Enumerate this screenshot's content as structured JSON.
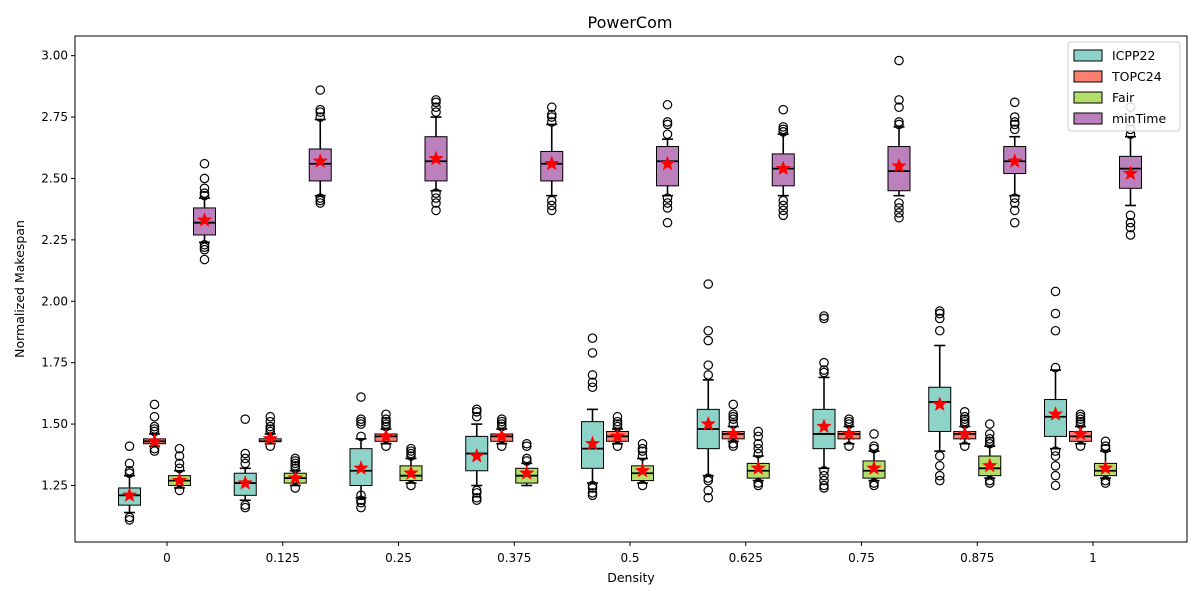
{
  "chart_data": {
    "type": "box",
    "title": "PowerCom",
    "xlabel": "Density",
    "ylabel": "Normalized Makespan",
    "ylim": [
      1.02,
      3.08
    ],
    "yticks": [
      "1.25",
      "1.50",
      "1.75",
      "2.00",
      "2.25",
      "2.50",
      "2.75",
      "3.00"
    ],
    "ytick_values": [
      1.25,
      1.5,
      1.75,
      2.0,
      2.25,
      2.5,
      2.75,
      3.0
    ],
    "categories": [
      "0",
      "0.125",
      "0.25",
      "0.375",
      "0.5",
      "0.625",
      "0.75",
      "0.875",
      "1"
    ],
    "legend_position": "top-right",
    "mean_marker": "red star",
    "series": [
      {
        "name": "ICPP22",
        "color": "#8dd3c7",
        "boxes": [
          {
            "whislo": 1.14,
            "q1": 1.17,
            "med": 1.21,
            "q3": 1.24,
            "whishi": 1.29,
            "mean": 1.21,
            "fliers": [
              1.11,
              1.12,
              1.3,
              1.31,
              1.34,
              1.41
            ]
          },
          {
            "whislo": 1.19,
            "q1": 1.21,
            "med": 1.26,
            "q3": 1.3,
            "whishi": 1.32,
            "mean": 1.26,
            "fliers": [
              1.16,
              1.17,
              1.34,
              1.36,
              1.38,
              1.52
            ]
          },
          {
            "whislo": 1.2,
            "q1": 1.25,
            "med": 1.31,
            "q3": 1.4,
            "whishi": 1.44,
            "mean": 1.32,
            "fliers": [
              1.16,
              1.18,
              1.19,
              1.21,
              1.45,
              1.5,
              1.51,
              1.52,
              1.61
            ]
          },
          {
            "whislo": 1.25,
            "q1": 1.31,
            "med": 1.38,
            "q3": 1.45,
            "whishi": 1.5,
            "mean": 1.37,
            "fliers": [
              1.19,
              1.2,
              1.22,
              1.23,
              1.53,
              1.55,
              1.56
            ]
          },
          {
            "whislo": 1.26,
            "q1": 1.32,
            "med": 1.4,
            "q3": 1.51,
            "whishi": 1.56,
            "mean": 1.42,
            "fliers": [
              1.21,
              1.22,
              1.24,
              1.25,
              1.65,
              1.67,
              1.7,
              1.79,
              1.85
            ]
          },
          {
            "whislo": 1.29,
            "q1": 1.4,
            "med": 1.48,
            "q3": 1.56,
            "whishi": 1.68,
            "mean": 1.5,
            "fliers": [
              1.2,
              1.23,
              1.27,
              1.28,
              1.7,
              1.74,
              1.84,
              1.88,
              2.07
            ]
          },
          {
            "whislo": 1.32,
            "q1": 1.4,
            "med": 1.46,
            "q3": 1.56,
            "whishi": 1.69,
            "mean": 1.49,
            "fliers": [
              1.24,
              1.25,
              1.27,
              1.29,
              1.31,
              1.71,
              1.72,
              1.75,
              1.93,
              1.94
            ]
          },
          {
            "whislo": 1.39,
            "q1": 1.47,
            "med": 1.59,
            "q3": 1.65,
            "whishi": 1.82,
            "mean": 1.58,
            "fliers": [
              1.27,
              1.29,
              1.33,
              1.37,
              1.88,
              1.93,
              1.95,
              1.96
            ]
          },
          {
            "whislo": 1.4,
            "q1": 1.45,
            "med": 1.53,
            "q3": 1.6,
            "whishi": 1.72,
            "mean": 1.54,
            "fliers": [
              1.25,
              1.29,
              1.33,
              1.37,
              1.39,
              1.73,
              1.88,
              1.95,
              2.04
            ]
          }
        ]
      },
      {
        "name": "TOPC24",
        "color": "#fb8072",
        "boxes": [
          {
            "whislo": 1.41,
            "q1": 1.42,
            "med": 1.43,
            "q3": 1.44,
            "whishi": 1.46,
            "mean": 1.43,
            "fliers": [
              1.39,
              1.4,
              1.47,
              1.48,
              1.49,
              1.53,
              1.58
            ]
          },
          {
            "whislo": 1.42,
            "q1": 1.43,
            "med": 1.43,
            "q3": 1.44,
            "whishi": 1.46,
            "mean": 1.44,
            "fliers": [
              1.41,
              1.47,
              1.48,
              1.49,
              1.51,
              1.53
            ]
          },
          {
            "whislo": 1.42,
            "q1": 1.43,
            "med": 1.45,
            "q3": 1.46,
            "whishi": 1.48,
            "mean": 1.45,
            "fliers": [
              1.41,
              1.49,
              1.5,
              1.51,
              1.52,
              1.54
            ]
          },
          {
            "whislo": 1.42,
            "q1": 1.43,
            "med": 1.45,
            "q3": 1.46,
            "whishi": 1.48,
            "mean": 1.45,
            "fliers": [
              1.41,
              1.49,
              1.5,
              1.51,
              1.52
            ]
          },
          {
            "whislo": 1.42,
            "q1": 1.43,
            "med": 1.45,
            "q3": 1.47,
            "whishi": 1.48,
            "mean": 1.45,
            "fliers": [
              1.41,
              1.49,
              1.5,
              1.51,
              1.53
            ]
          },
          {
            "whislo": 1.43,
            "q1": 1.44,
            "med": 1.46,
            "q3": 1.47,
            "whishi": 1.49,
            "mean": 1.46,
            "fliers": [
              1.41,
              1.42,
              1.5,
              1.52,
              1.53,
              1.54,
              1.58
            ]
          },
          {
            "whislo": 1.42,
            "q1": 1.44,
            "med": 1.46,
            "q3": 1.47,
            "whishi": 1.49,
            "mean": 1.46,
            "fliers": [
              1.41,
              1.5,
              1.51,
              1.52
            ]
          },
          {
            "whislo": 1.42,
            "q1": 1.44,
            "med": 1.46,
            "q3": 1.47,
            "whishi": 1.49,
            "mean": 1.46,
            "fliers": [
              1.41,
              1.5,
              1.51,
              1.52,
              1.53,
              1.55
            ]
          },
          {
            "whislo": 1.42,
            "q1": 1.43,
            "med": 1.45,
            "q3": 1.47,
            "whishi": 1.49,
            "mean": 1.46,
            "fliers": [
              1.41,
              1.5,
              1.51,
              1.52,
              1.53,
              1.54
            ]
          }
        ]
      },
      {
        "name": "Fair",
        "color": "#b3de69",
        "boxes": [
          {
            "whislo": 1.24,
            "q1": 1.25,
            "med": 1.27,
            "q3": 1.29,
            "whishi": 1.31,
            "mean": 1.27,
            "fliers": [
              1.23,
              1.32,
              1.34,
              1.37,
              1.4
            ]
          },
          {
            "whislo": 1.25,
            "q1": 1.26,
            "med": 1.28,
            "q3": 1.3,
            "whishi": 1.31,
            "mean": 1.28,
            "fliers": [
              1.24,
              1.32,
              1.33,
              1.34,
              1.35,
              1.36
            ]
          },
          {
            "whislo": 1.26,
            "q1": 1.27,
            "med": 1.29,
            "q3": 1.33,
            "whishi": 1.36,
            "mean": 1.3,
            "fliers": [
              1.25,
              1.37,
              1.38,
              1.39,
              1.4
            ]
          },
          {
            "whislo": 1.25,
            "q1": 1.26,
            "med": 1.29,
            "q3": 1.32,
            "whishi": 1.34,
            "mean": 1.3,
            "fliers": [
              1.35,
              1.36,
              1.41,
              1.42
            ]
          },
          {
            "whislo": 1.26,
            "q1": 1.27,
            "med": 1.3,
            "q3": 1.33,
            "whishi": 1.36,
            "mean": 1.31,
            "fliers": [
              1.25,
              1.37,
              1.39,
              1.4,
              1.42
            ]
          },
          {
            "whislo": 1.27,
            "q1": 1.28,
            "med": 1.31,
            "q3": 1.34,
            "whishi": 1.37,
            "mean": 1.32,
            "fliers": [
              1.25,
              1.26,
              1.38,
              1.4,
              1.42,
              1.45,
              1.47
            ]
          },
          {
            "whislo": 1.27,
            "q1": 1.28,
            "med": 1.31,
            "q3": 1.35,
            "whishi": 1.39,
            "mean": 1.32,
            "fliers": [
              1.25,
              1.26,
              1.4,
              1.41,
              1.46
            ]
          },
          {
            "whislo": 1.28,
            "q1": 1.29,
            "med": 1.32,
            "q3": 1.37,
            "whishi": 1.41,
            "mean": 1.33,
            "fliers": [
              1.26,
              1.27,
              1.42,
              1.43,
              1.44,
              1.46,
              1.5
            ]
          },
          {
            "whislo": 1.28,
            "q1": 1.29,
            "med": 1.31,
            "q3": 1.34,
            "whishi": 1.39,
            "mean": 1.32,
            "fliers": [
              1.26,
              1.27,
              1.4,
              1.41,
              1.43
            ]
          }
        ]
      },
      {
        "name": "minTime",
        "color": "#bc80bd",
        "boxes": [
          {
            "whislo": 2.24,
            "q1": 2.27,
            "med": 2.32,
            "q3": 2.38,
            "whishi": 2.42,
            "mean": 2.33,
            "fliers": [
              2.17,
              2.21,
              2.22,
              2.23,
              2.43,
              2.44,
              2.46,
              2.5,
              2.56
            ]
          },
          {
            "whislo": 2.43,
            "q1": 2.49,
            "med": 2.56,
            "q3": 2.62,
            "whishi": 2.74,
            "mean": 2.57,
            "fliers": [
              2.4,
              2.41,
              2.42,
              2.75,
              2.77,
              2.78,
              2.86
            ]
          },
          {
            "whislo": 2.45,
            "q1": 2.49,
            "med": 2.57,
            "q3": 2.67,
            "whishi": 2.75,
            "mean": 2.58,
            "fliers": [
              2.37,
              2.4,
              2.42,
              2.44,
              2.77,
              2.79,
              2.81,
              2.82
            ]
          },
          {
            "whislo": 2.43,
            "q1": 2.49,
            "med": 2.56,
            "q3": 2.61,
            "whishi": 2.72,
            "mean": 2.56,
            "fliers": [
              2.37,
              2.39,
              2.41,
              2.73,
              2.75,
              2.76,
              2.79
            ]
          },
          {
            "whislo": 2.43,
            "q1": 2.47,
            "med": 2.57,
            "q3": 2.63,
            "whishi": 2.66,
            "mean": 2.56,
            "fliers": [
              2.32,
              2.38,
              2.4,
              2.42,
              2.68,
              2.72,
              2.73,
              2.8
            ]
          },
          {
            "whislo": 2.43,
            "q1": 2.47,
            "med": 2.54,
            "q3": 2.6,
            "whishi": 2.68,
            "mean": 2.54,
            "fliers": [
              2.35,
              2.37,
              2.39,
              2.41,
              2.69,
              2.7,
              2.71,
              2.78
            ]
          },
          {
            "whislo": 2.43,
            "q1": 2.45,
            "med": 2.53,
            "q3": 2.63,
            "whishi": 2.71,
            "mean": 2.55,
            "fliers": [
              2.34,
              2.36,
              2.38,
              2.4,
              2.72,
              2.73,
              2.79,
              2.82,
              2.98
            ]
          },
          {
            "whislo": 2.43,
            "q1": 2.52,
            "med": 2.57,
            "q3": 2.63,
            "whishi": 2.67,
            "mean": 2.57,
            "fliers": [
              2.32,
              2.37,
              2.4,
              2.42,
              2.7,
              2.72,
              2.73,
              2.75,
              2.81
            ]
          },
          {
            "whislo": 2.39,
            "q1": 2.46,
            "med": 2.54,
            "q3": 2.59,
            "whishi": 2.67,
            "mean": 2.52,
            "fliers": [
              2.27,
              2.3,
              2.32,
              2.35,
              2.68,
              2.7,
              2.73,
              2.79
            ]
          }
        ]
      }
    ]
  }
}
